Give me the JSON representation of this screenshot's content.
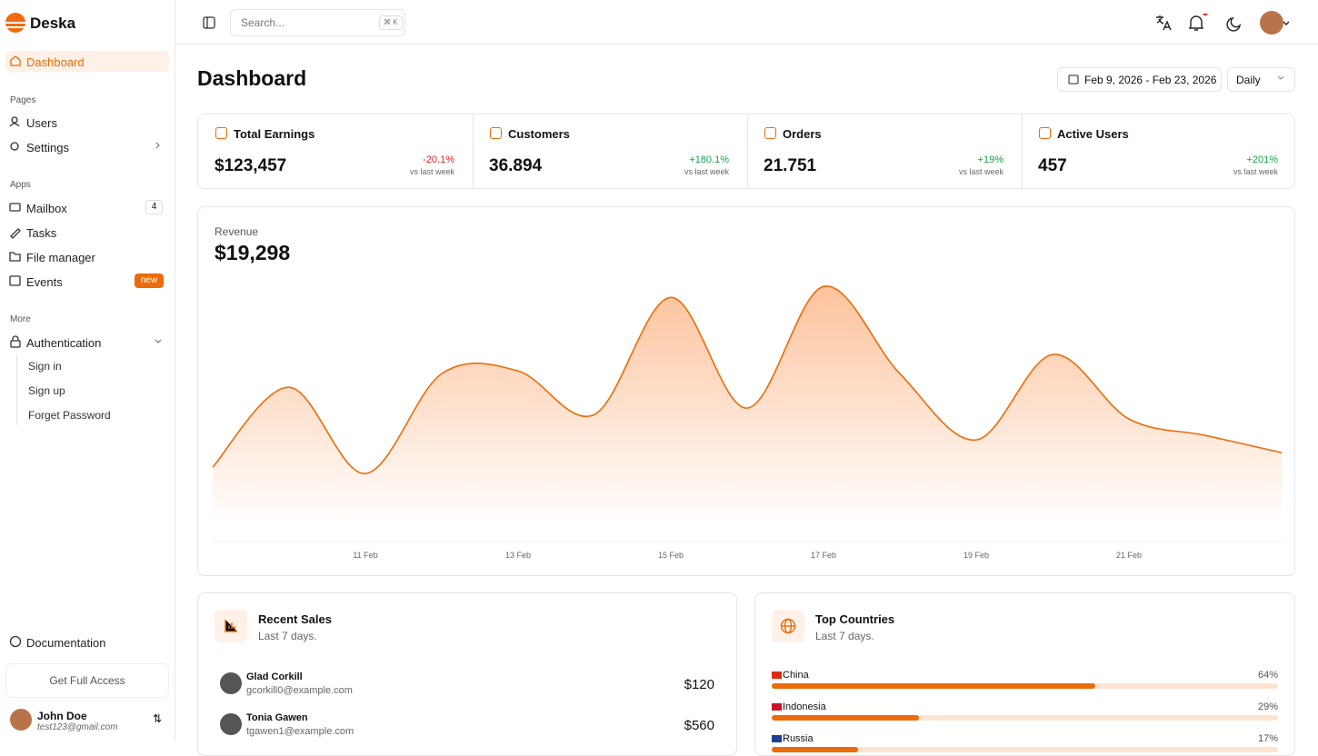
{
  "sidebar": {
    "brand": "Deska",
    "active": "Dashboard",
    "groups": [
      {
        "title": "Pages",
        "items": [
          "Users",
          "Settings"
        ]
      },
      {
        "title": "Apps",
        "items": [
          "Mailbox",
          "Tasks",
          "File manager",
          "Events"
        ]
      },
      {
        "title": "More",
        "items": [
          "Authentication"
        ]
      }
    ],
    "badges": {
      "mailbox": "4",
      "events": "new"
    },
    "auth_children": [
      "Sign in",
      "Sign up",
      "Forget Password"
    ],
    "documentation": "Documentation",
    "cta": "Get Full Access",
    "user": {
      "name": "John Doe",
      "email": "test123@gmail.com"
    }
  },
  "topbar": {
    "search_placeholder": "Search...",
    "shortcut": "⌘ K"
  },
  "header": {
    "title": "Dashboard",
    "date_range": "Feb 9, 2026 - Feb 23, 2026",
    "period": "Daily"
  },
  "stats": [
    {
      "label": "Total Earnings",
      "value": "$123,457",
      "change": "-20.1%",
      "note": "vs last week"
    },
    {
      "label": "Customers",
      "value": "36.894",
      "change": "+180.1%",
      "note": "vs last week"
    },
    {
      "label": "Orders",
      "value": "21.751",
      "change": "+19%",
      "note": "vs last week"
    },
    {
      "label": "Active Users",
      "value": "457",
      "change": "+201%",
      "note": "vs last week"
    }
  ],
  "chart_data": {
    "type": "area",
    "subtitle": "Revenue",
    "title": "$19,298",
    "color": "#ea6c0a",
    "categories": [
      null,
      null,
      "11 Feb",
      null,
      "13 Feb",
      null,
      "15 Feb",
      null,
      "17 Feb",
      null,
      "19 Feb",
      null,
      "21 Feb",
      null,
      null
    ],
    "values": [
      662,
      1372,
      605,
      1493,
      1517,
      1130,
      2171,
      1187,
      2268,
      1493,
      904,
      1663,
      1090,
      944,
      791
    ],
    "ylim": [
      0,
      2400
    ]
  },
  "recent_sales": {
    "title": "Recent Sales",
    "subtitle": "Last 7 days.",
    "rows": [
      {
        "name": "Glad Corkill",
        "email": "gcorkill0@example.com",
        "amount": "$120"
      },
      {
        "name": "Tonia Gawen",
        "email": "tgawen1@example.com",
        "amount": "$560"
      }
    ]
  },
  "top_countries": {
    "title": "Top Countries",
    "subtitle": "Last 7 days.",
    "rows": [
      {
        "name": "China",
        "value": 64,
        "label": "64%"
      },
      {
        "name": "Indonesia",
        "value": 29,
        "label": "29%"
      },
      {
        "name": "Russia",
        "value": 17,
        "label": "17%"
      }
    ]
  }
}
